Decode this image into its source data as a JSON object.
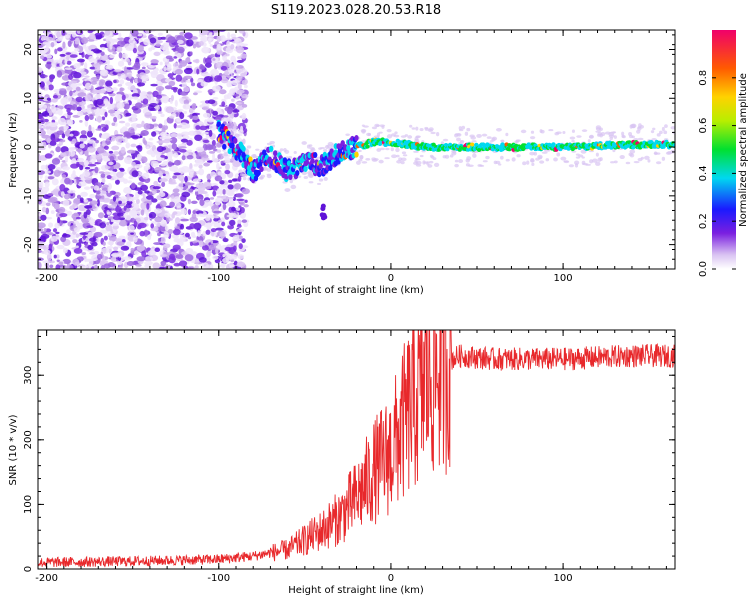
{
  "title": "S119.2023.028.20.53.R18",
  "chart_data": [
    {
      "type": "heatmap",
      "xlabel": "Height of straight line (km)",
      "ylabel": "Frequency (Hz)",
      "xlim": [
        -205,
        165
      ],
      "ylim": [
        -25,
        24
      ],
      "xticks": [
        -200,
        -100,
        0,
        100
      ],
      "yticks": [
        -20,
        -10,
        0,
        10,
        20
      ],
      "colorbar": {
        "label": "Normalized spectral amplitude",
        "range": [
          0,
          1
        ],
        "ticks": [
          "0.0",
          "0.2",
          "0.4",
          "0.6",
          "0.8"
        ]
      },
      "signal_trace": {
        "x": [
          -100,
          -90,
          -80,
          -70,
          -60,
          -50,
          -40,
          -30,
          -20,
          -10,
          0,
          20,
          50,
          100,
          140,
          165
        ],
        "y": [
          3,
          0,
          -5,
          -2,
          -5,
          -3,
          -4,
          -1,
          0,
          1,
          1,
          0,
          0,
          0,
          0.5,
          0.5
        ]
      },
      "noise_region": {
        "x_from": -205,
        "x_to": -90
      }
    },
    {
      "type": "line",
      "xlabel": "Height of straight line (km)",
      "ylabel": "SNR (10 * v/v)",
      "xlim": [
        -205,
        165
      ],
      "ylim": [
        0,
        370
      ],
      "xticks": [
        -200,
        -100,
        0,
        100
      ],
      "yticks": [
        0,
        100,
        200,
        300
      ],
      "series": [
        {
          "color": "#e8282b",
          "x": [
            -205,
            -150,
            -100,
            -80,
            -60,
            -50,
            -40,
            -30,
            -20,
            -10,
            0,
            10,
            20,
            30,
            40,
            60,
            100,
            140,
            165
          ],
          "y": [
            10,
            12,
            15,
            20,
            30,
            45,
            60,
            80,
            110,
            150,
            180,
            240,
            290,
            320,
            330,
            325,
            325,
            330,
            330
          ]
        }
      ]
    }
  ]
}
